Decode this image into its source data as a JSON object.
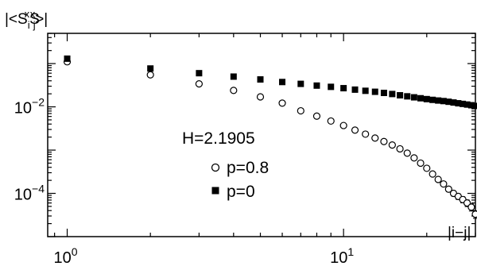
{
  "chart_data": {
    "type": "scatter",
    "title": "",
    "ylabel": "|<S_i^x S_j^x>|",
    "xlabel": "|i−j|",
    "xscale": "log",
    "yscale": "log",
    "xlim": [
      0.85,
      30
    ],
    "ylim": [
      1e-05,
      0.5
    ],
    "x_ticks": [
      {
        "value": 1,
        "base": "10",
        "exp": "0"
      },
      {
        "value": 10,
        "base": "10",
        "exp": "1"
      }
    ],
    "y_ticks": [
      {
        "value": 0.01,
        "base": "10",
        "exp": "−2"
      },
      {
        "value": 0.0001,
        "base": "10",
        "exp": "−4"
      }
    ],
    "grid": false,
    "legend": {
      "title": "H=2.1905",
      "placement": "center"
    },
    "series": [
      {
        "name": "p=0.8",
        "marker": "open-circle",
        "x": [
          1,
          2,
          3,
          4,
          5,
          6,
          7,
          8,
          9,
          10,
          11,
          12,
          13,
          14,
          15,
          16,
          17,
          18,
          19,
          20,
          21,
          22,
          23,
          24,
          25,
          26,
          27,
          28,
          29,
          30
        ],
        "y": [
          0.11,
          0.055,
          0.034,
          0.024,
          0.017,
          0.0122,
          0.0081,
          0.0061,
          0.0047,
          0.0037,
          0.0029,
          0.00234,
          0.0019,
          0.00158,
          0.00131,
          0.00107,
          0.00085,
          0.00066,
          0.0005,
          0.00038,
          0.00028,
          0.00021,
          0.000165,
          0.000125,
          0.0001,
          8.5e-05,
          7.2e-05,
          6e-05,
          4.8e-05,
          3.3e-05
        ],
        "yerr_from": 20
      },
      {
        "name": "p=0",
        "marker": "filled-square",
        "x": [
          1,
          2,
          3,
          4,
          5,
          6,
          7,
          8,
          9,
          10,
          11,
          12,
          13,
          14,
          15,
          16,
          17,
          18,
          19,
          20,
          21,
          22,
          23,
          24,
          25,
          26,
          27,
          28,
          29,
          30
        ],
        "y": [
          0.13,
          0.077,
          0.06,
          0.05,
          0.043,
          0.0375,
          0.034,
          0.031,
          0.029,
          0.027,
          0.025,
          0.0235,
          0.0223,
          0.021,
          0.0198,
          0.0185,
          0.0175,
          0.0166,
          0.0158,
          0.0151,
          0.0145,
          0.014,
          0.0136,
          0.0131,
          0.0126,
          0.0121,
          0.0117,
          0.0113,
          0.0109,
          0.0105
        ]
      }
    ]
  }
}
